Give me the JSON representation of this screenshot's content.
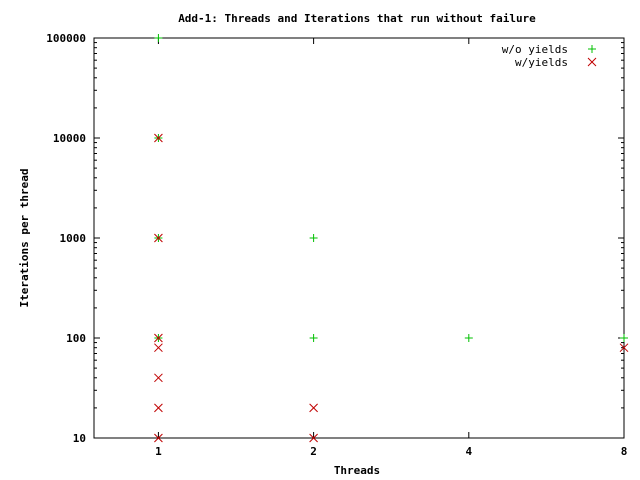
{
  "chart_data": {
    "type": "scatter",
    "title": "Add-1: Threads and Iterations that run without failure",
    "xlabel": "Threads",
    "ylabel": "Iterations per thread",
    "x_scale": "log2",
    "y_scale": "log10",
    "xlim": [
      0.75,
      8
    ],
    "ylim": [
      10,
      100000
    ],
    "x_ticks": [
      1,
      2,
      4,
      8
    ],
    "x_tick_labels": [
      "1",
      "2",
      "4",
      "8"
    ],
    "y_ticks": [
      10,
      100,
      1000,
      10000,
      100000
    ],
    "y_tick_labels": [
      "10",
      "100",
      "1000",
      "10000",
      "100000"
    ],
    "grid": false,
    "legend_position": "top-right",
    "series": [
      {
        "name": "w/o yields",
        "marker": "plus",
        "color": "#00c000",
        "points": [
          [
            1,
            100000
          ],
          [
            1,
            10000
          ],
          [
            1,
            1000
          ],
          [
            1,
            100
          ],
          [
            2,
            1000
          ],
          [
            2,
            100
          ],
          [
            4,
            100
          ],
          [
            8,
            100
          ]
        ]
      },
      {
        "name": "w/yields",
        "marker": "x",
        "color": "#c00000",
        "points": [
          [
            1,
            10000
          ],
          [
            1,
            1000
          ],
          [
            1,
            100
          ],
          [
            1,
            80
          ],
          [
            1,
            40
          ],
          [
            1,
            20
          ],
          [
            1,
            10
          ],
          [
            2,
            20
          ],
          [
            2,
            10
          ],
          [
            8,
            80
          ]
        ]
      }
    ]
  }
}
